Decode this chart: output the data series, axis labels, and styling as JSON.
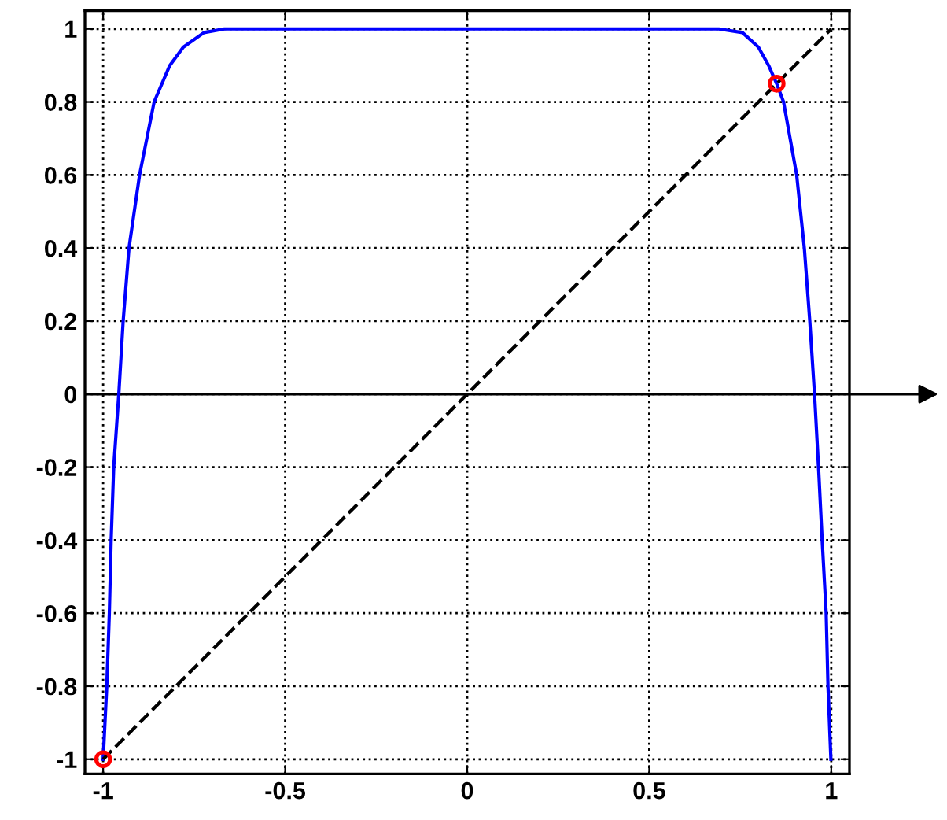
{
  "chart_data": {
    "type": "line",
    "xlim": [
      -1.05,
      1.05
    ],
    "ylim": [
      -1.04,
      1.05
    ],
    "xticks": [
      {
        "value": -1,
        "label": "-1"
      },
      {
        "value": -0.5,
        "label": "-0.5"
      },
      0,
      0.5,
      1
    ],
    "yticks": [
      {
        "value": -1,
        "label": "-1"
      },
      {
        "value": -0.8,
        "label": "-0.8"
      },
      {
        "value": -0.6,
        "label": "-0.6"
      },
      {
        "value": -0.4,
        "label": "-0.4"
      },
      {
        "value": -0.2,
        "label": "-0.2"
      },
      0,
      0.2,
      0.4,
      0.6,
      0.8,
      1
    ],
    "grid": true,
    "ref_lines": [
      {
        "axis": "y",
        "value": 0,
        "color": "#000000",
        "line_style": "solid"
      }
    ],
    "series": [
      {
        "color": "#0000ff",
        "line_style": "solid",
        "marker": "none",
        "x": [
          -1,
          -0.99,
          -0.983,
          -0.978,
          -0.971,
          -0.957,
          -0.945,
          -0.929,
          -0.9,
          -0.86,
          -0.817,
          -0.78,
          -0.723,
          -0.667,
          0.691,
          0.756,
          0.8,
          0.828,
          0.85,
          0.869,
          0.905,
          0.926,
          0.941,
          0.954,
          0.965,
          0.975,
          0.986,
          0.991,
          0.999
        ],
        "values": [
          -1,
          -0.8,
          -0.6,
          -0.4,
          -0.2,
          0,
          0.2,
          0.4,
          0.6,
          0.8,
          0.9,
          0.95,
          0.99,
          1,
          1,
          0.99,
          0.95,
          0.9,
          0.85,
          0.8,
          0.6,
          0.4,
          0.2,
          0,
          -0.2,
          -0.4,
          -0.6,
          -0.8,
          -1
        ]
      },
      {
        "type": "line",
        "color": "#000000",
        "line_style": "dashed",
        "marker": "none",
        "x": [
          -1,
          1
        ],
        "values": [
          -1,
          1
        ]
      },
      {
        "type": "scatter",
        "color": "#ff0000",
        "marker": "circle",
        "x": [
          -1,
          0.85
        ],
        "values": [
          -1,
          0.85
        ]
      }
    ]
  }
}
